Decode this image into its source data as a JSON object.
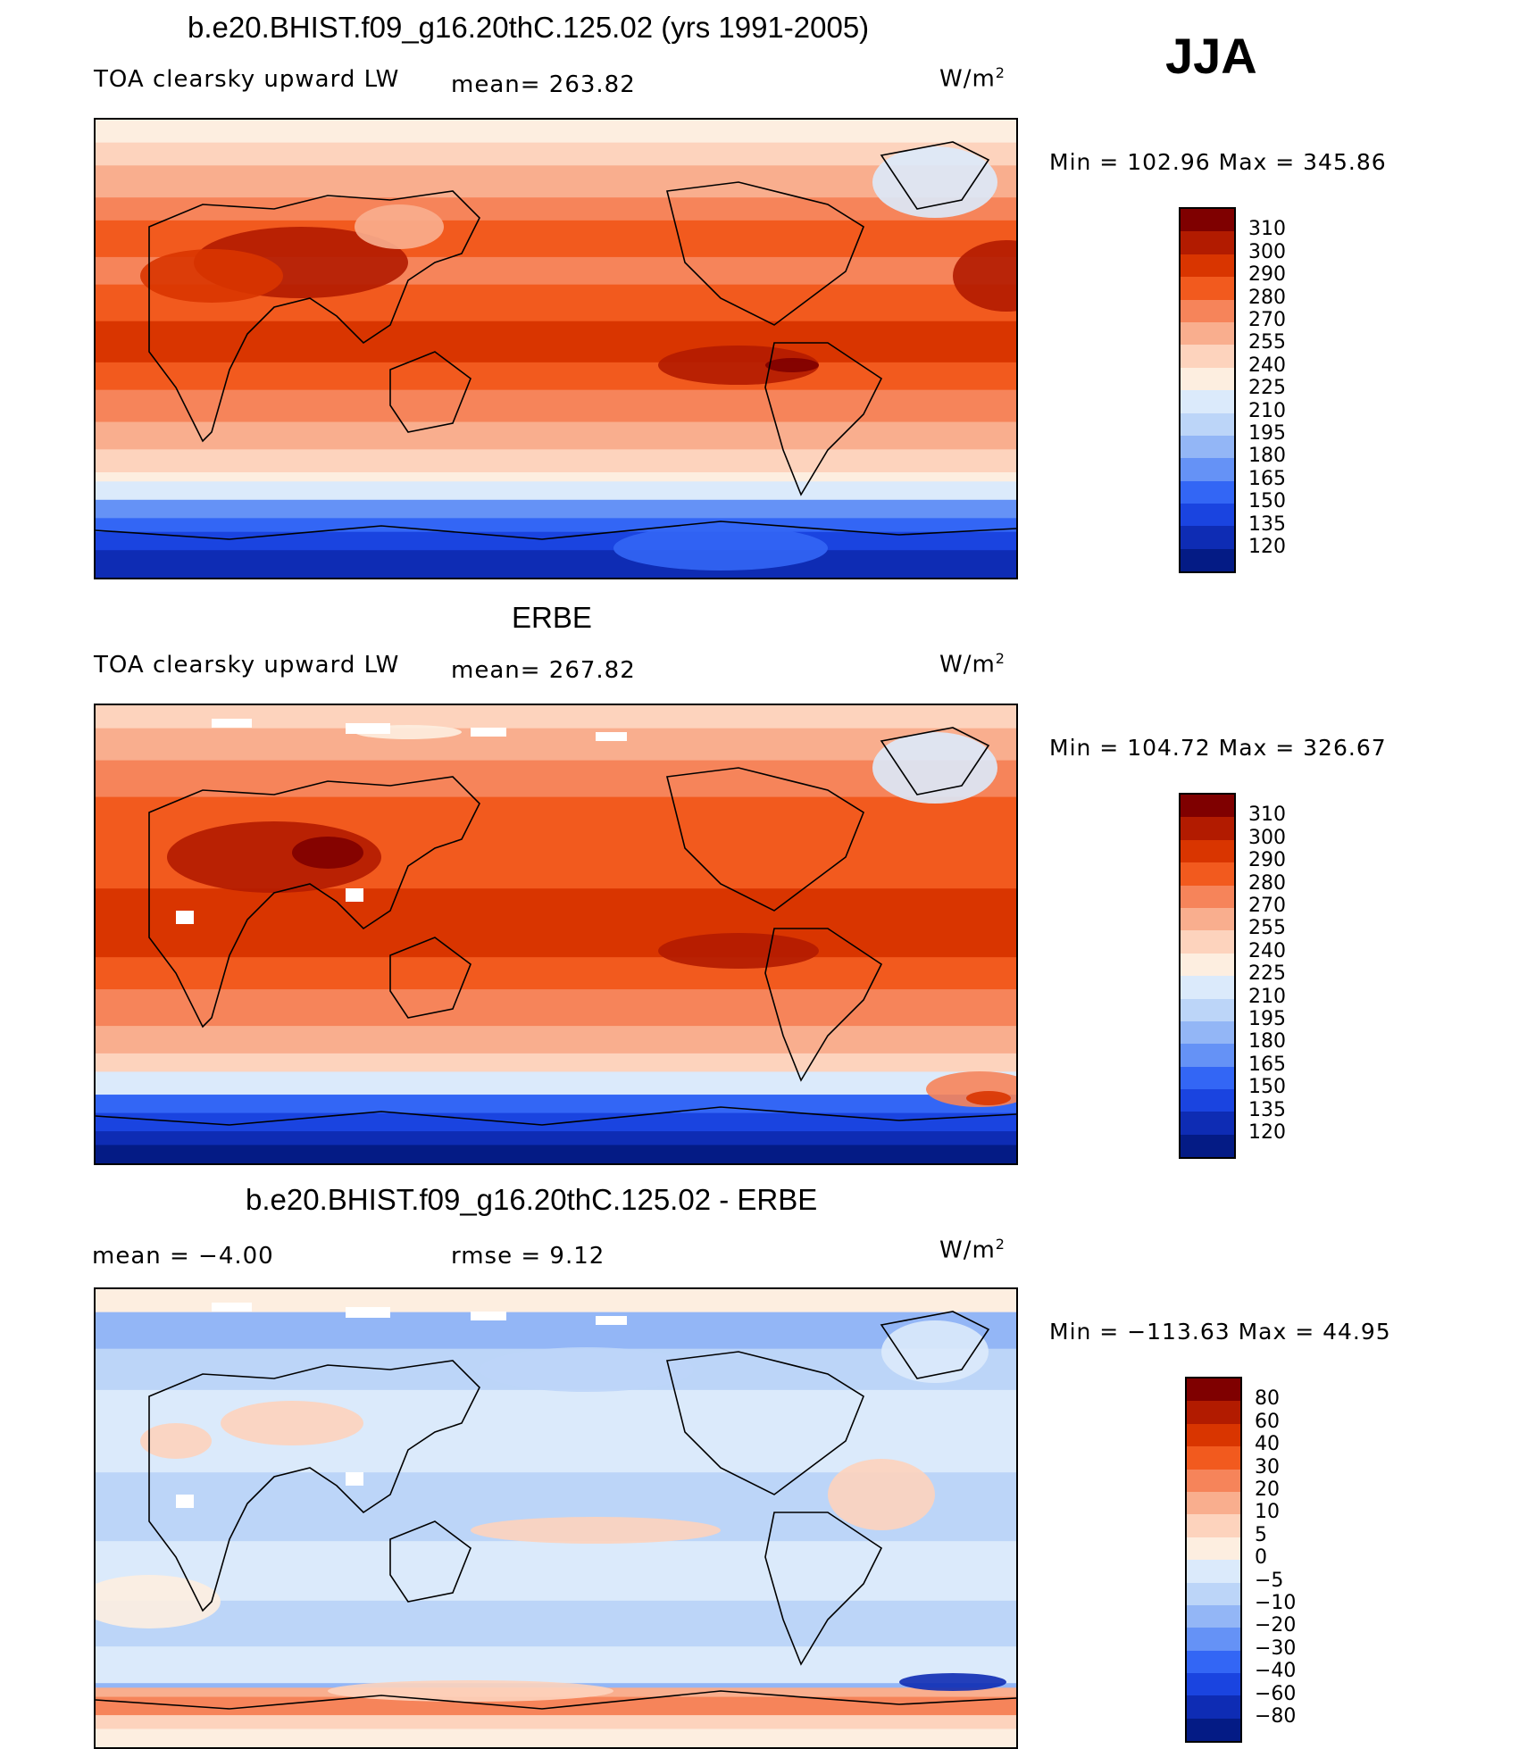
{
  "season": "JJA",
  "panels": [
    {
      "title": "b.e20.BHIST.f09_g16.20thC.125.02 (yrs 1991-2005)",
      "left_label": "TOA clearsky upward LW",
      "mid_label": "mean= 263.82",
      "units": "W/m",
      "units_exp": "2",
      "minmax": "Min  =  102.96  Max  =  345.86",
      "colorbar": {
        "labels": [
          "310",
          "300",
          "290",
          "280",
          "270",
          "255",
          "240",
          "225",
          "210",
          "195",
          "180",
          "165",
          "150",
          "135",
          "120"
        ],
        "colors": [
          "#7f0000",
          "#b21b00",
          "#d93500",
          "#f25a1e",
          "#f6845a",
          "#f9ae8e",
          "#fdd3bd",
          "#fdeee0",
          "#dbeafb",
          "#bcd5f8",
          "#93b6f6",
          "#6592f6",
          "#3366f5",
          "#1a44e0",
          "#0e2cb4",
          "#041b85"
        ]
      },
      "map": "model"
    },
    {
      "title": "ERBE",
      "left_label": "TOA clearsky upward LW",
      "mid_label": "mean= 267.82",
      "units": "W/m",
      "units_exp": "2",
      "minmax": "Min  =  104.72  Max  =  326.67",
      "colorbar": {
        "labels": [
          "310",
          "300",
          "290",
          "280",
          "270",
          "255",
          "240",
          "225",
          "210",
          "195",
          "180",
          "165",
          "150",
          "135",
          "120"
        ],
        "colors": [
          "#7f0000",
          "#b21b00",
          "#d93500",
          "#f25a1e",
          "#f6845a",
          "#f9ae8e",
          "#fdd3bd",
          "#fdeee0",
          "#dbeafb",
          "#bcd5f8",
          "#93b6f6",
          "#6592f6",
          "#3366f5",
          "#1a44e0",
          "#0e2cb4",
          "#041b85"
        ]
      },
      "map": "obs"
    },
    {
      "title": "b.e20.BHIST.f09_g16.20thC.125.02 - ERBE",
      "left_label": "mean  =    −4.00",
      "mid_label": "rmse  =     9.12",
      "units": "W/m",
      "units_exp": "2",
      "minmax": "Min  =  −113.63  Max  =    44.95",
      "colorbar": {
        "labels": [
          "80",
          "60",
          "40",
          "30",
          "20",
          "10",
          "5",
          "0",
          "−5",
          "−10",
          "−20",
          "−30",
          "−40",
          "−60",
          "−80"
        ],
        "colors": [
          "#7f0000",
          "#b21b00",
          "#d93500",
          "#f25a1e",
          "#f6845a",
          "#f9ae8e",
          "#fdd3bd",
          "#fdeee0",
          "#dbeafb",
          "#bcd5f8",
          "#93b6f6",
          "#6592f6",
          "#3366f5",
          "#1a44e0",
          "#0e2cb4",
          "#041b85"
        ]
      },
      "map": "diff"
    }
  ]
}
